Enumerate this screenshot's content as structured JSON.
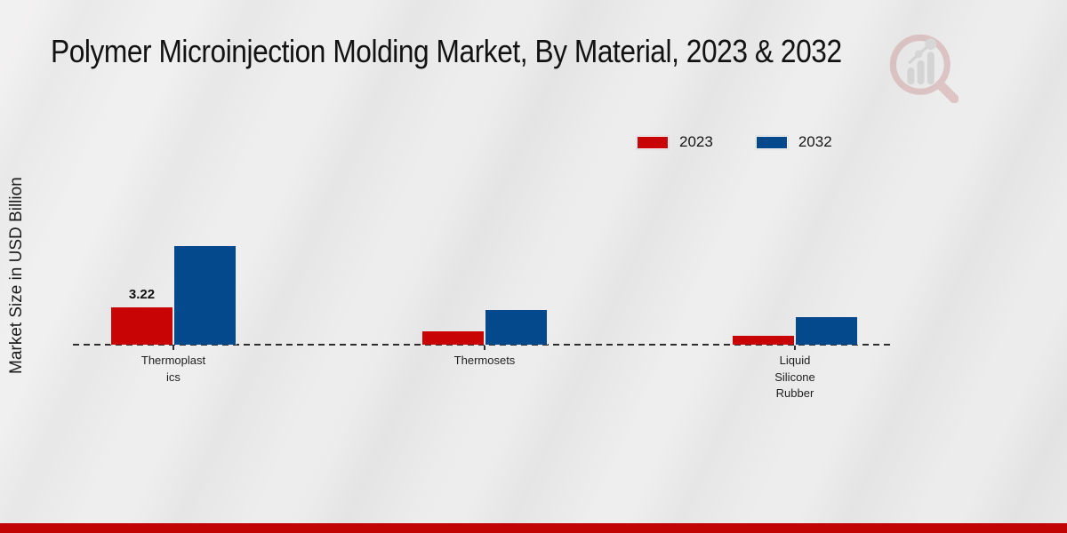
{
  "title": "Polymer Microinjection Molding Market, By Material, 2023 & 2032",
  "ylabel": "Market Size in USD Billion",
  "colors": {
    "bar_2023": "#c90404",
    "bar_2032": "#04498c",
    "footer_strip": "#c10404",
    "axis": "#2e2e2e",
    "background": "#e9e9e9",
    "title_text": "#121212"
  },
  "legend": {
    "items": [
      {
        "label": "2023",
        "color": "#c90404"
      },
      {
        "label": "2032",
        "color": "#04498c"
      }
    ]
  },
  "watermark_icon": "magnifier-bar-chart-logo",
  "chart_data": {
    "type": "bar",
    "title": "Polymer Microinjection Molding Market, By Material, 2023 & 2032",
    "xlabel": "",
    "ylabel": "Market Size in USD Billion",
    "categories": [
      "Thermoplastics",
      "Thermosets",
      "Liquid Silicone Rubber"
    ],
    "category_label_lines": [
      [
        "Thermoplast",
        "ics"
      ],
      [
        "Thermosets"
      ],
      [
        "Liquid",
        "Silicone",
        "Rubber"
      ]
    ],
    "series": [
      {
        "name": "2023",
        "color": "#c90404",
        "values": [
          3.22,
          1.2,
          0.85
        ],
        "data_labels": [
          "3.22",
          "",
          ""
        ]
      },
      {
        "name": "2032",
        "color": "#04498c",
        "values": [
          8.4,
          3.0,
          2.4
        ],
        "data_labels": [
          "",
          "",
          ""
        ]
      }
    ],
    "ylim": [
      0,
      9
    ],
    "grid": false,
    "baseline_style": "dashed",
    "legend_position": "top-right"
  }
}
